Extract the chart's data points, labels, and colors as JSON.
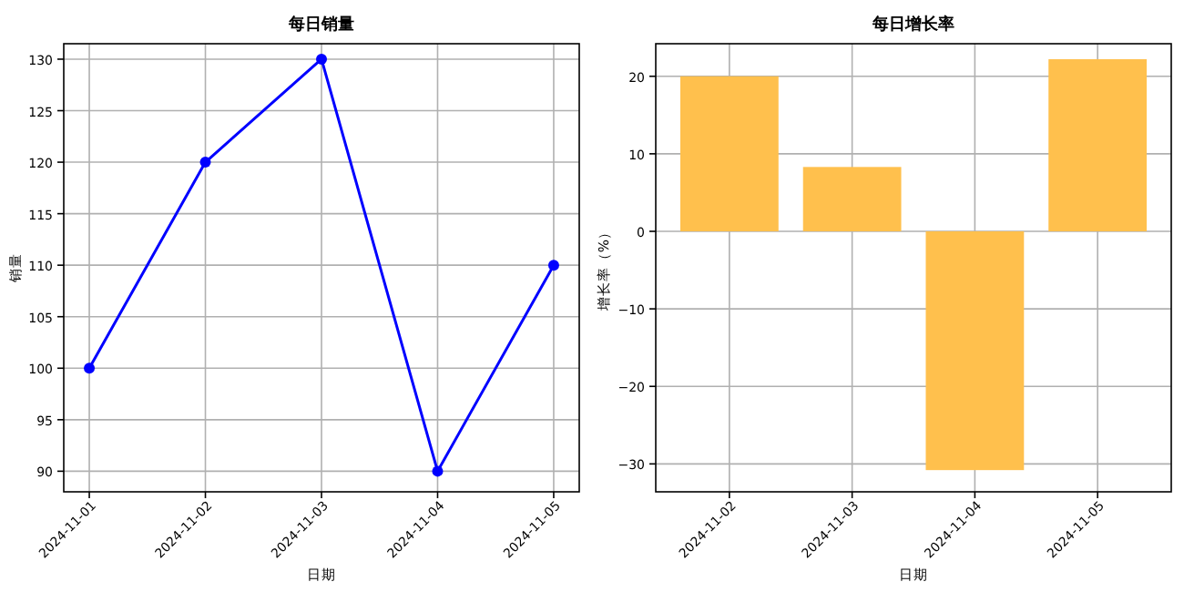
{
  "chart_data": [
    {
      "type": "line",
      "title": "每日销量",
      "xlabel": "日期",
      "ylabel": "销量",
      "categories": [
        "2024-11-01",
        "2024-11-02",
        "2024-11-03",
        "2024-11-04",
        "2024-11-05"
      ],
      "series": [
        {
          "color": "#0000ff",
          "values": [
            100,
            120,
            130,
            90,
            110
          ]
        }
      ],
      "marker": "circle",
      "grid": true,
      "ylim": [
        88,
        131.5
      ],
      "yticks": [
        90,
        95,
        100,
        105,
        110,
        115,
        120,
        125,
        130
      ]
    },
    {
      "type": "bar",
      "title": "每日增长率",
      "xlabel": "日期",
      "ylabel": "增长率（%）",
      "categories": [
        "2024-11-02",
        "2024-11-03",
        "2024-11-04",
        "2024-11-05"
      ],
      "series": [
        {
          "color": "#ffc04d",
          "values": [
            20,
            8.3,
            -30.8,
            22.2
          ]
        }
      ],
      "grid": true,
      "ylim": [
        -33.6,
        24.2
      ],
      "yticks": [
        -30,
        -20,
        -10,
        0,
        10,
        20
      ]
    }
  ]
}
